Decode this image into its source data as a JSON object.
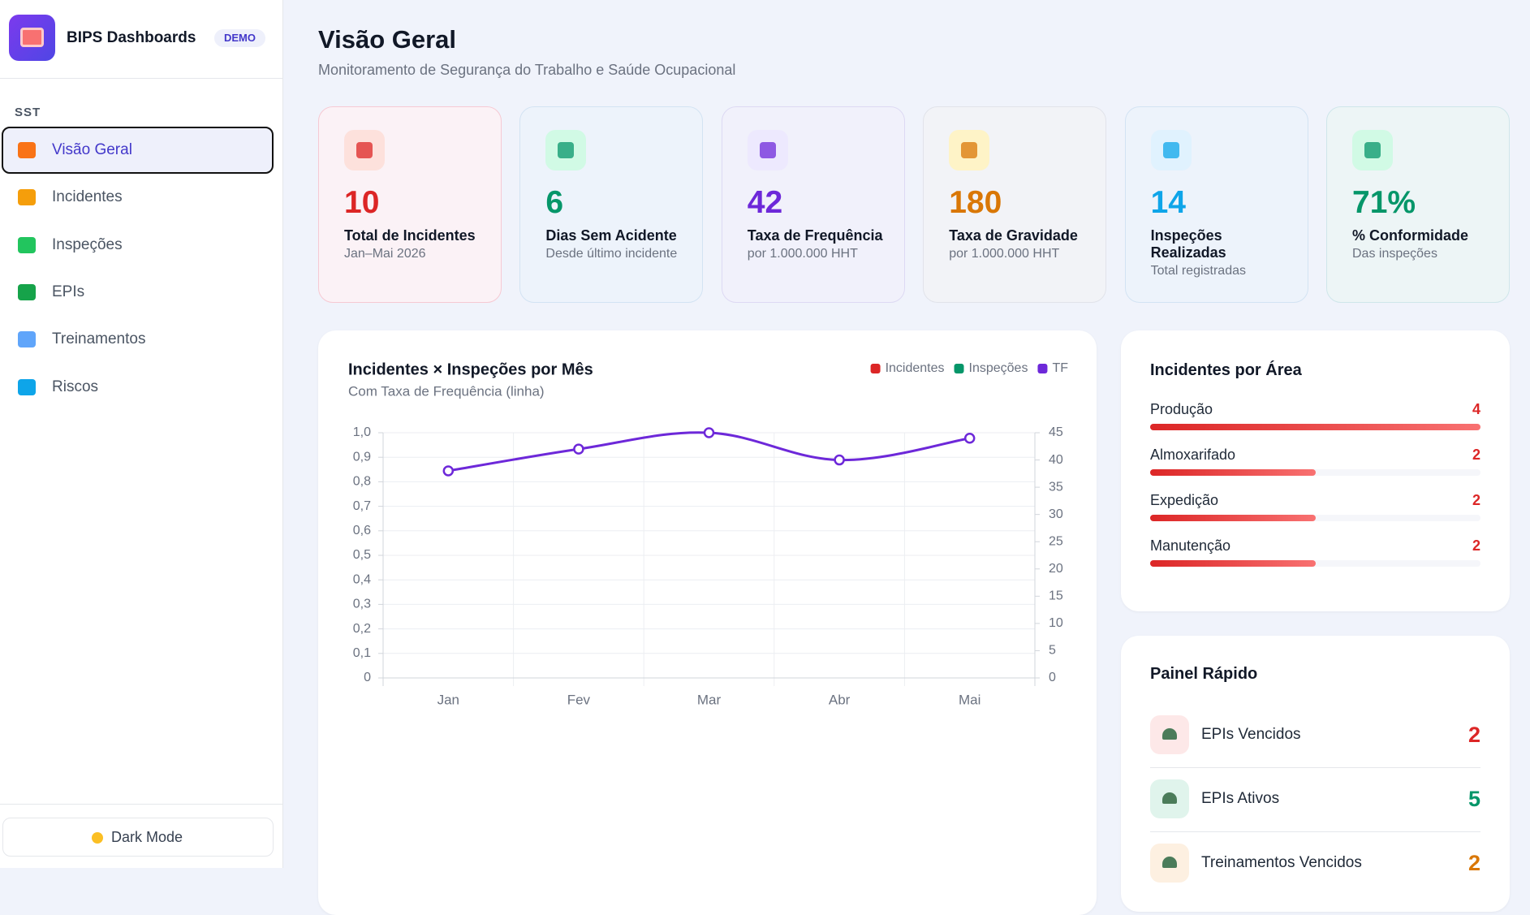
{
  "sidebar": {
    "brand": "BIPS Dashboards",
    "badge": "DEMO",
    "section": "SST",
    "nav": [
      "Visão Geral",
      "Incidentes",
      "Inspeções",
      "EPIs",
      "Treinamentos",
      "Riscos"
    ],
    "active": 0,
    "dark_mode": "Dark Mode"
  },
  "header": {
    "title": "Visão Geral",
    "subtitle": "Monitoramento de Segurança do Trabalho e Saúde Ocupacional"
  },
  "kpis": [
    {
      "value": "10",
      "label": "Total de Incidentes",
      "sub": "Jan–Mai 2026",
      "color": "#dc2626"
    },
    {
      "value": "6",
      "label": "Dias Sem Acidente",
      "sub": "Desde último incidente",
      "color": "#059669"
    },
    {
      "value": "42",
      "label": "Taxa de Frequência",
      "sub": "por 1.000.000 HHT",
      "color": "#6d28d9"
    },
    {
      "value": "180",
      "label": "Taxa de Gravidade",
      "sub": "por 1.000.000 HHT",
      "color": "#d97706"
    },
    {
      "value": "14",
      "label": "Inspeções Realizadas",
      "sub": "Total registradas",
      "color": "#0ea5e9"
    },
    {
      "value": "71%",
      "label": "% Conformidade",
      "sub": "Das inspeções",
      "color": "#059669"
    }
  ],
  "chart_data": {
    "type": "bar",
    "title": "Incidentes × Inspeções por Mês",
    "subtitle": "Com Taxa de Frequência (linha)",
    "categories": [
      "Jan",
      "Fev",
      "Mar",
      "Abr",
      "Mai"
    ],
    "series": [
      {
        "name": "Incidentes",
        "color": "#dc2626",
        "type": "bar",
        "values": [
          null,
          null,
          null,
          null,
          null
        ]
      },
      {
        "name": "Inspeções",
        "color": "#059669",
        "type": "bar",
        "values": [
          null,
          null,
          null,
          null,
          null
        ]
      },
      {
        "name": "TF",
        "color": "#6d28d9",
        "type": "line",
        "axis": "y2",
        "values": [
          38,
          42,
          45,
          40,
          44
        ]
      }
    ],
    "ylim": [
      0,
      1
    ],
    "yticks": [
      0,
      {
        "value": 0.1,
        "label": "0,1"
      },
      {
        "value": 0.2,
        "label": "0,2"
      },
      {
        "value": 0.3,
        "label": "0,3"
      },
      {
        "value": 0.4,
        "label": "0,4"
      },
      {
        "value": 0.5,
        "label": "0,5"
      },
      {
        "value": 0.6,
        "label": "0,6"
      },
      {
        "value": 0.7,
        "label": "0,7"
      },
      {
        "value": 0.8,
        "label": "0,8"
      },
      {
        "value": 0.9,
        "label": "0,9"
      },
      {
        "value": 1,
        "label": "1,0"
      }
    ],
    "y2lim": [
      0,
      45
    ],
    "y2ticks": [
      0,
      5,
      10,
      15,
      20,
      25,
      30,
      35,
      40,
      45
    ],
    "grid": true
  },
  "area_panel": {
    "title": "Incidentes por Área",
    "rows": [
      {
        "name": "Produção",
        "value": 4
      },
      {
        "name": "Almoxarifado",
        "value": 2
      },
      {
        "name": "Expedição",
        "value": 2
      },
      {
        "name": "Manutenção",
        "value": 2
      }
    ]
  },
  "quick_panel": {
    "title": "Painel Rápido",
    "rows": [
      {
        "label": "EPIs Vencidos",
        "value": 2,
        "color": "#dc2626"
      },
      {
        "label": "EPIs Ativos",
        "value": 5,
        "color": "#059669"
      },
      {
        "label": "Treinamentos Vencidos",
        "value": 2,
        "color": "#d97706"
      }
    ]
  }
}
